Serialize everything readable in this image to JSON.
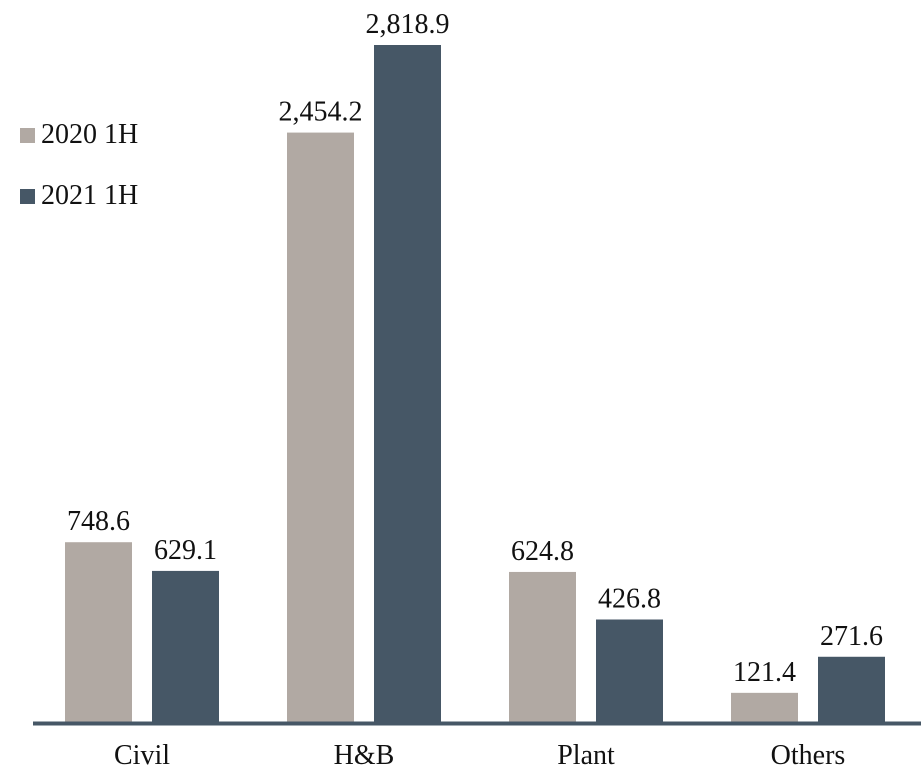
{
  "chart_data": {
    "type": "bar",
    "title": "",
    "xlabel": "",
    "ylabel": "",
    "ylim": [
      0,
      2818.9
    ],
    "grid": false,
    "legend_position": "top-left",
    "categories": [
      "Civil",
      "H&B",
      "Plant",
      "Others"
    ],
    "series": [
      {
        "name": "2020 1H",
        "color": "#b1a9a3",
        "values": [
          748.6,
          2454.2,
          624.8,
          121.4
        ],
        "labels": [
          "748.6",
          "2,454.2",
          "624.8",
          "121.4"
        ]
      },
      {
        "name": "2021 1H",
        "color": "#465766",
        "values": [
          629.1,
          2818.9,
          426.8,
          271.6
        ],
        "labels": [
          "629.1",
          "2,818.9",
          "426.8",
          "271.6"
        ]
      }
    ],
    "axis_color": "#465766"
  }
}
